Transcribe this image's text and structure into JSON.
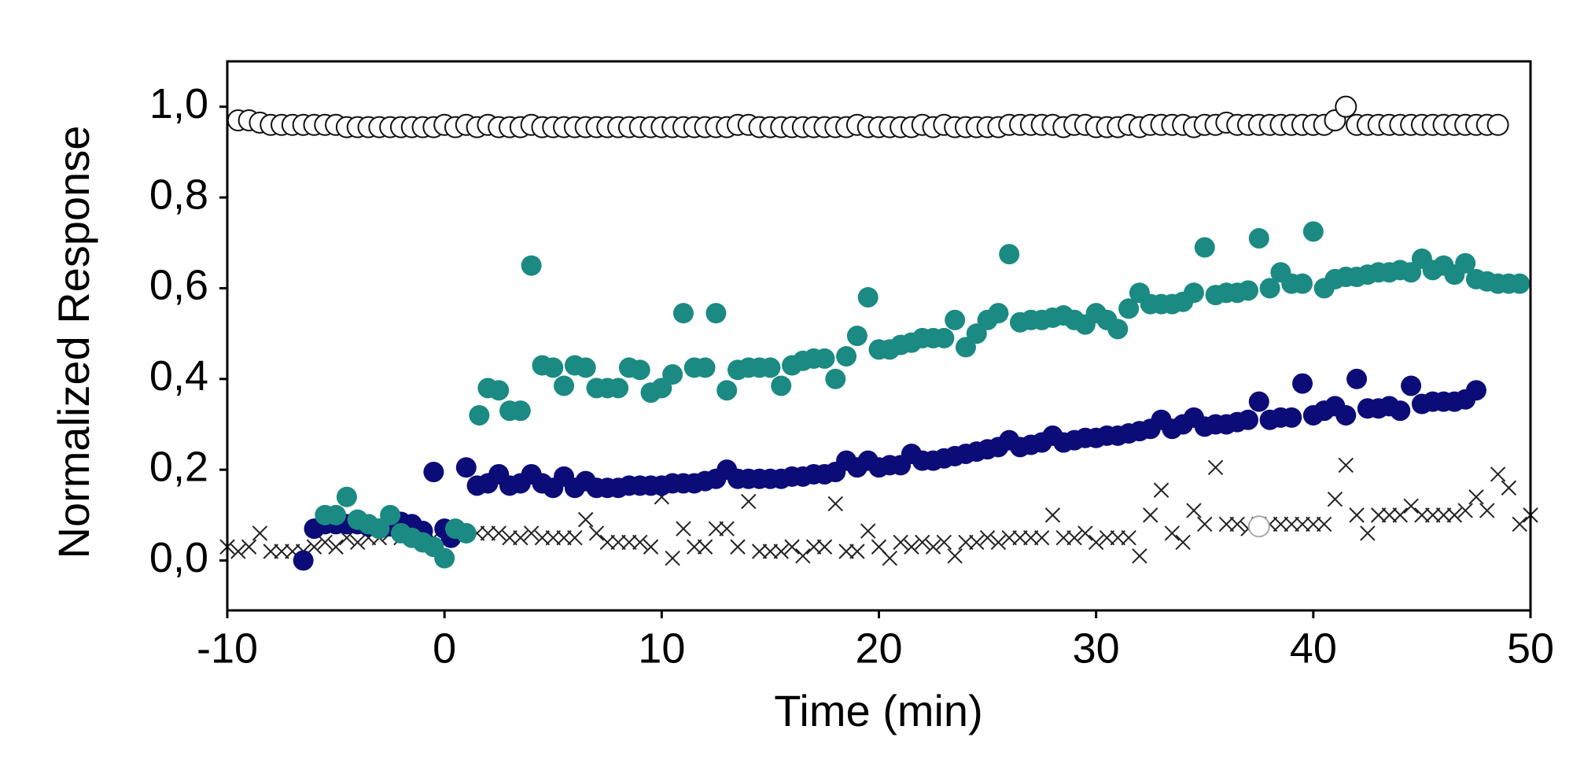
{
  "chart_data": {
    "type": "scatter",
    "xlabel": "Time (min)",
    "ylabel": "Normalized Response",
    "xlim": [
      -10,
      50
    ],
    "xticks": [
      -10,
      0,
      10,
      20,
      30,
      40,
      50
    ],
    "ylim": [
      -0.11,
      1.1
    ],
    "yticks": [
      {
        "value": 0,
        "label": "0,0"
      },
      {
        "value": 0.2,
        "label": "0,2"
      },
      {
        "value": 0.4,
        "label": "0,4"
      },
      {
        "value": 0.6,
        "label": "0,6"
      },
      {
        "value": 0.8,
        "label": "0,8"
      },
      {
        "value": 1.0,
        "label": "1,0"
      }
    ],
    "grid": false,
    "series": [
      {
        "marker": "x",
        "color": "#222222",
        "x": [
          -10,
          -9.5,
          -9,
          -8.5,
          -8,
          -7.5,
          -7,
          -6.5,
          -6,
          -5.5,
          -5,
          -4.5,
          -4,
          -3.5,
          -3,
          -2.5,
          -2,
          -1.5,
          -1,
          -0.5,
          0,
          0.5,
          1,
          1.5,
          2,
          2.5,
          3,
          3.5,
          4,
          4.5,
          5,
          5.5,
          6,
          6.5,
          7,
          7.5,
          8,
          8.5,
          9,
          9.5,
          10,
          10.5,
          11,
          11.5,
          12,
          12.5,
          13,
          13.5,
          14,
          14.5,
          15,
          15.5,
          16,
          16.5,
          17,
          17.5,
          18,
          18.5,
          19,
          19.5,
          20,
          20.5,
          21,
          21.5,
          22,
          22.5,
          23,
          23.5,
          24,
          24.5,
          25,
          25.5,
          26,
          26.5,
          27,
          27.5,
          28,
          28.5,
          29,
          29.5,
          30,
          30.5,
          31,
          31.5,
          32,
          32.5,
          33,
          33.5,
          34,
          34.5,
          35,
          35.5,
          36,
          36.5,
          37,
          37.5,
          38,
          38.5,
          39,
          39.5,
          40,
          40.5,
          41,
          41.5,
          42,
          42.5,
          43,
          43.5,
          44,
          44.5,
          45,
          45.5,
          46,
          46.5,
          47,
          47.5,
          48,
          48.5,
          49,
          49.5,
          50
        ],
        "values": [
          0.03,
          0.02,
          0.03,
          0.06,
          0.02,
          0.02,
          0.02,
          0.02,
          0.03,
          0.04,
          0.03,
          0.05,
          0.04,
          0.05,
          0.05,
          0.06,
          0.05,
          0.05,
          0.06,
          0.05,
          0.05,
          0.06,
          0.06,
          0.06,
          0.06,
          0.06,
          0.05,
          0.05,
          0.06,
          0.05,
          0.05,
          0.05,
          0.05,
          0.09,
          0.06,
          0.04,
          0.04,
          0.04,
          0.04,
          0.03,
          0.14,
          0.005,
          0.07,
          0.03,
          0.03,
          0.07,
          0.07,
          0.03,
          0.13,
          0.02,
          0.02,
          0.02,
          0.03,
          0.01,
          0.03,
          0.03,
          0.125,
          0.02,
          0.02,
          0.065,
          0.03,
          0.005,
          0.04,
          0.03,
          0.04,
          0.03,
          0.04,
          0.01,
          0.04,
          0.04,
          0.05,
          0.04,
          0.05,
          0.05,
          0.05,
          0.05,
          0.1,
          0.05,
          0.05,
          0.06,
          0.04,
          0.05,
          0.05,
          0.05,
          0.01,
          0.1,
          0.155,
          0.06,
          0.04,
          0.11,
          0.08,
          0.205,
          0.08,
          0.08,
          0.07,
          0.08,
          0.08,
          0.08,
          0.08,
          0.08,
          0.08,
          0.08,
          0.135,
          0.21,
          0.1,
          0.06,
          0.1,
          0.1,
          0.1,
          0.12,
          0.1,
          0.1,
          0.1,
          0.1,
          0.11,
          0.14,
          0.11,
          0.19,
          0.16,
          0.08,
          0.1
        ]
      },
      {
        "marker": "circle-open",
        "color": "#aaaaaa",
        "x": [
          37.5
        ],
        "values": [
          0.075
        ]
      },
      {
        "marker": "circle-open",
        "color": "#111111",
        "x": [
          -9.5,
          -9,
          -8.5,
          -8,
          -7.5,
          -7,
          -6.5,
          -6,
          -5.5,
          -5,
          -4.5,
          -4,
          -3.5,
          -3,
          -2.5,
          -2,
          -1.5,
          -1,
          -0.5,
          0,
          0.5,
          1,
          1.5,
          2,
          2.5,
          3,
          3.5,
          4,
          4.5,
          5,
          5.5,
          6,
          6.5,
          7,
          7.5,
          8,
          8.5,
          9,
          9.5,
          10,
          10.5,
          11,
          11.5,
          12,
          12.5,
          13,
          13.5,
          14,
          14.5,
          15,
          15.5,
          16,
          16.5,
          17,
          17.5,
          18,
          18.5,
          19,
          19.5,
          20,
          20.5,
          21,
          21.5,
          22,
          22.5,
          23,
          23.5,
          24,
          24.5,
          25,
          25.5,
          26,
          26.5,
          27,
          27.5,
          28,
          28.5,
          29,
          29.5,
          30,
          30.5,
          31,
          31.5,
          32,
          32.5,
          33,
          33.5,
          34,
          34.5,
          35,
          35.5,
          36,
          36.5,
          37,
          37.5,
          38,
          38.5,
          39,
          39.5,
          40,
          40.5,
          41,
          41.5,
          42,
          42.5,
          43,
          43.5,
          44,
          44.5,
          45,
          45.5,
          46,
          46.5,
          47,
          47.5,
          48,
          48.5
        ],
        "values": [
          0.97,
          0.97,
          0.965,
          0.96,
          0.96,
          0.96,
          0.96,
          0.96,
          0.96,
          0.96,
          0.955,
          0.955,
          0.955,
          0.955,
          0.955,
          0.955,
          0.955,
          0.955,
          0.955,
          0.96,
          0.955,
          0.96,
          0.955,
          0.96,
          0.955,
          0.955,
          0.955,
          0.96,
          0.955,
          0.955,
          0.955,
          0.955,
          0.955,
          0.955,
          0.955,
          0.955,
          0.955,
          0.955,
          0.955,
          0.955,
          0.955,
          0.955,
          0.955,
          0.955,
          0.955,
          0.955,
          0.96,
          0.96,
          0.955,
          0.955,
          0.955,
          0.955,
          0.955,
          0.955,
          0.955,
          0.955,
          0.955,
          0.96,
          0.955,
          0.955,
          0.955,
          0.955,
          0.955,
          0.96,
          0.955,
          0.96,
          0.955,
          0.955,
          0.955,
          0.955,
          0.955,
          0.96,
          0.96,
          0.96,
          0.96,
          0.96,
          0.955,
          0.96,
          0.96,
          0.955,
          0.955,
          0.955,
          0.96,
          0.955,
          0.96,
          0.96,
          0.96,
          0.96,
          0.955,
          0.96,
          0.96,
          0.965,
          0.96,
          0.96,
          0.96,
          0.96,
          0.96,
          0.96,
          0.96,
          0.96,
          0.96,
          0.97,
          1.0,
          0.96,
          0.96,
          0.96,
          0.96,
          0.96,
          0.96,
          0.96,
          0.96,
          0.96,
          0.96,
          0.96,
          0.96,
          0.96,
          0.96
        ]
      },
      {
        "marker": "circle-filled",
        "color": "#0c0c78",
        "x": [
          -6.5,
          -6,
          -5.5,
          -5,
          -4.5,
          -4,
          -3.5,
          -3,
          -2.5,
          -2,
          -1.5,
          -1,
          -0.5,
          0,
          0.3,
          1,
          1.5,
          2,
          2.5,
          3,
          3.5,
          4,
          4.5,
          5,
          5.5,
          6,
          6.5,
          7,
          7.5,
          8,
          8.5,
          9,
          9.5,
          10,
          10.5,
          11,
          11.5,
          12,
          12.5,
          13,
          13.5,
          14,
          14.5,
          15,
          15.5,
          16,
          16.5,
          17,
          17.5,
          18,
          18.5,
          19,
          19.5,
          20,
          20.5,
          21,
          21.5,
          22,
          22.5,
          23,
          23.5,
          24,
          24.5,
          25,
          25.5,
          26,
          26.5,
          27,
          27.5,
          28,
          28.5,
          29,
          29.5,
          30,
          30.5,
          31,
          31.5,
          32,
          32.5,
          33,
          33.5,
          34,
          34.5,
          35,
          35.5,
          36,
          36.5,
          37,
          37.5,
          38,
          38.5,
          39,
          39.5,
          40,
          40.5,
          41,
          41.5,
          42,
          42.5,
          43,
          43.5,
          44,
          44.5,
          45,
          45.5,
          46,
          46.5,
          47,
          47.5
        ],
        "values": [
          0.0,
          0.07,
          0.08,
          0.08,
          0.08,
          0.08,
          0.075,
          0.07,
          0.075,
          0.085,
          0.08,
          0.065,
          0.195,
          0.07,
          0.05,
          0.205,
          0.165,
          0.17,
          0.19,
          0.165,
          0.17,
          0.19,
          0.17,
          0.16,
          0.185,
          0.16,
          0.175,
          0.16,
          0.16,
          0.16,
          0.165,
          0.165,
          0.165,
          0.165,
          0.17,
          0.17,
          0.17,
          0.175,
          0.18,
          0.2,
          0.18,
          0.18,
          0.18,
          0.18,
          0.18,
          0.185,
          0.185,
          0.19,
          0.19,
          0.195,
          0.22,
          0.205,
          0.22,
          0.205,
          0.21,
          0.21,
          0.235,
          0.22,
          0.22,
          0.225,
          0.23,
          0.235,
          0.24,
          0.245,
          0.25,
          0.265,
          0.25,
          0.255,
          0.26,
          0.275,
          0.26,
          0.265,
          0.27,
          0.27,
          0.275,
          0.275,
          0.28,
          0.285,
          0.29,
          0.31,
          0.29,
          0.3,
          0.315,
          0.295,
          0.3,
          0.3,
          0.305,
          0.31,
          0.35,
          0.31,
          0.315,
          0.315,
          0.39,
          0.32,
          0.33,
          0.34,
          0.32,
          0.4,
          0.335,
          0.335,
          0.34,
          0.33,
          0.385,
          0.345,
          0.35,
          0.35,
          0.35,
          0.355,
          0.375
        ]
      },
      {
        "marker": "circle-filled",
        "color": "#1b8a82",
        "x": [
          -5.5,
          -5,
          -4.5,
          -4,
          -3.5,
          -3,
          -2.5,
          -2,
          -1.5,
          -1,
          -0.5,
          0,
          0.5,
          1,
          1.6,
          2,
          2.5,
          3,
          3.5,
          4,
          4.5,
          5,
          5.5,
          6,
          6.5,
          7,
          7.5,
          8,
          8.5,
          9,
          9.5,
          10,
          10.5,
          11,
          11.5,
          12,
          12.5,
          13,
          13.5,
          14,
          14.5,
          15,
          15.5,
          16,
          16.5,
          17,
          17.5,
          18,
          18.5,
          19,
          19.5,
          20,
          20.5,
          21,
          21.5,
          22,
          22.5,
          23,
          23.5,
          24,
          24.5,
          25,
          25.5,
          26,
          26.5,
          27,
          27.5,
          28,
          28.5,
          29,
          29.5,
          30,
          30.5,
          31,
          31.5,
          32,
          32.5,
          33,
          33.5,
          34,
          34.5,
          35,
          35.5,
          36,
          36.5,
          37,
          37.5,
          38,
          38.5,
          39,
          39.5,
          40,
          40.5,
          41,
          41.5,
          42,
          42.5,
          43,
          43.5,
          44,
          44.5,
          45,
          45.5,
          46,
          46.5,
          47,
          47.5,
          48,
          48.5,
          49,
          49.5
        ],
        "values": [
          0.1,
          0.1,
          0.14,
          0.09,
          0.08,
          0.07,
          0.1,
          0.06,
          0.05,
          0.04,
          0.03,
          0.005,
          0.07,
          0.06,
          0.32,
          0.38,
          0.375,
          0.33,
          0.33,
          0.65,
          0.43,
          0.425,
          0.385,
          0.43,
          0.425,
          0.38,
          0.38,
          0.38,
          0.425,
          0.42,
          0.37,
          0.38,
          0.41,
          0.545,
          0.425,
          0.425,
          0.545,
          0.375,
          0.42,
          0.425,
          0.425,
          0.425,
          0.385,
          0.43,
          0.44,
          0.445,
          0.445,
          0.4,
          0.45,
          0.495,
          0.58,
          0.465,
          0.465,
          0.475,
          0.48,
          0.49,
          0.49,
          0.49,
          0.53,
          0.47,
          0.5,
          0.53,
          0.545,
          0.675,
          0.525,
          0.53,
          0.53,
          0.535,
          0.54,
          0.53,
          0.52,
          0.545,
          0.53,
          0.51,
          0.555,
          0.59,
          0.565,
          0.565,
          0.565,
          0.57,
          0.59,
          0.69,
          0.585,
          0.59,
          0.59,
          0.595,
          0.71,
          0.6,
          0.635,
          0.61,
          0.61,
          0.725,
          0.6,
          0.62,
          0.625,
          0.625,
          0.63,
          0.635,
          0.635,
          0.64,
          0.635,
          0.665,
          0.64,
          0.65,
          0.63,
          0.655,
          0.62,
          0.615,
          0.61,
          0.61,
          0.61
        ]
      }
    ]
  }
}
